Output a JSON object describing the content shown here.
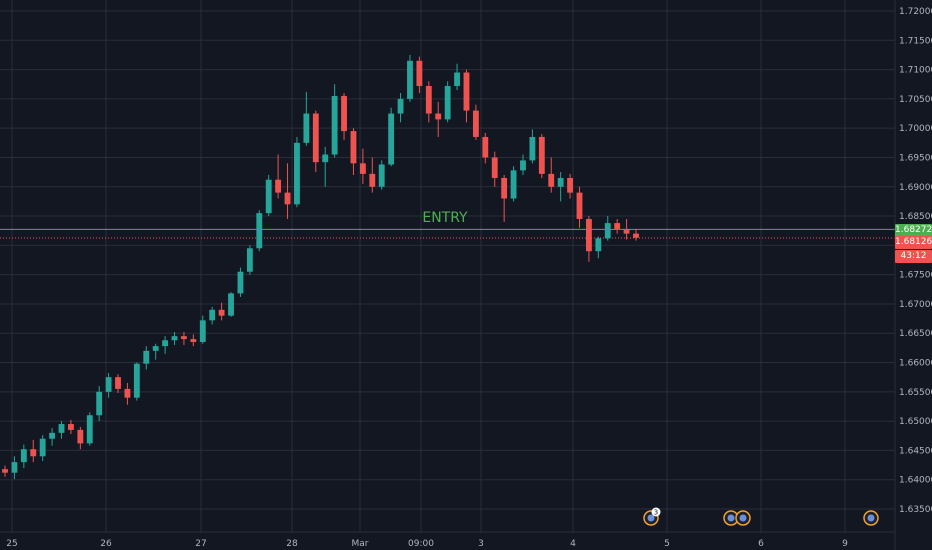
{
  "chart_data": {
    "type": "candlestick",
    "price_axis": {
      "ticks": [
        "1.72000",
        "1.71500",
        "1.71000",
        "1.70500",
        "1.70000",
        "1.69500",
        "1.69000",
        "1.68500",
        "1.68000",
        "1.67500",
        "1.67000",
        "1.66500",
        "1.66000",
        "1.65500",
        "1.65000",
        "1.64500",
        "1.64000",
        "1.63500"
      ],
      "range": [
        1.632,
        1.7215
      ]
    },
    "time_axis": {
      "ticks": [
        "25",
        "26",
        "27",
        "28",
        "Mar",
        "09:00",
        "3",
        "4",
        "5",
        "6",
        "9"
      ]
    },
    "series": [
      {
        "description": "hourly candles: open, high, low, close",
        "ohlc": [
          [
            1.6418,
            1.6424,
            1.6405,
            1.6412
          ],
          [
            1.6412,
            1.644,
            1.6401,
            1.643
          ],
          [
            1.643,
            1.646,
            1.642,
            1.6452
          ],
          [
            1.6452,
            1.6468,
            1.643,
            1.644
          ],
          [
            1.644,
            1.6476,
            1.6432,
            1.647
          ],
          [
            1.647,
            1.6488,
            1.6458,
            1.648
          ],
          [
            1.648,
            1.65,
            1.647,
            1.6495
          ],
          [
            1.6495,
            1.6502,
            1.6478,
            1.6485
          ],
          [
            1.6485,
            1.649,
            1.6452,
            1.6462
          ],
          [
            1.6462,
            1.6515,
            1.6458,
            1.651
          ],
          [
            1.651,
            1.656,
            1.65,
            1.655
          ],
          [
            1.655,
            1.6582,
            1.654,
            1.6575
          ],
          [
            1.6575,
            1.658,
            1.6548,
            1.6555
          ],
          [
            1.6555,
            1.6565,
            1.6528,
            1.654
          ],
          [
            1.654,
            1.66,
            1.6535,
            1.6598
          ],
          [
            1.6598,
            1.6628,
            1.6588,
            1.662
          ],
          [
            1.662,
            1.6632,
            1.6605,
            1.6628
          ],
          [
            1.6628,
            1.6645,
            1.6615,
            1.6638
          ],
          [
            1.6638,
            1.6652,
            1.663,
            1.6645
          ],
          [
            1.6645,
            1.6652,
            1.663,
            1.664
          ],
          [
            1.664,
            1.6648,
            1.6628,
            1.6635
          ],
          [
            1.6635,
            1.668,
            1.6632,
            1.6672
          ],
          [
            1.6672,
            1.6695,
            1.6665,
            1.669
          ],
          [
            1.669,
            1.6702,
            1.6672,
            1.668
          ],
          [
            1.668,
            1.672,
            1.6678,
            1.6718
          ],
          [
            1.6718,
            1.6762,
            1.6712,
            1.6755
          ],
          [
            1.6755,
            1.68,
            1.675,
            1.6795
          ],
          [
            1.6795,
            1.686,
            1.679,
            1.6855
          ],
          [
            1.6855,
            1.692,
            1.685,
            1.6912
          ],
          [
            1.6912,
            1.6955,
            1.688,
            1.689
          ],
          [
            1.689,
            1.694,
            1.6845,
            1.687
          ],
          [
            1.687,
            1.6985,
            1.6865,
            1.6975
          ],
          [
            1.6975,
            1.7062,
            1.697,
            1.7025
          ],
          [
            1.7025,
            1.703,
            1.6925,
            1.6942
          ],
          [
            1.6942,
            1.6968,
            1.69,
            1.6955
          ],
          [
            1.6955,
            1.7075,
            1.695,
            1.7055
          ],
          [
            1.7055,
            1.706,
            1.698,
            1.6995
          ],
          [
            1.6995,
            1.7,
            1.692,
            1.694
          ],
          [
            1.694,
            1.6965,
            1.6905,
            1.6922
          ],
          [
            1.6922,
            1.695,
            1.689,
            1.69
          ],
          [
            1.69,
            1.6945,
            1.6895,
            1.6938
          ],
          [
            1.6938,
            1.7035,
            1.6935,
            1.7025
          ],
          [
            1.7025,
            1.706,
            1.701,
            1.705
          ],
          [
            1.705,
            1.7125,
            1.7045,
            1.7115
          ],
          [
            1.7115,
            1.7122,
            1.706,
            1.7072
          ],
          [
            1.7072,
            1.708,
            1.701,
            1.7025
          ],
          [
            1.7025,
            1.7045,
            1.6985,
            1.7015
          ],
          [
            1.7015,
            1.708,
            1.701,
            1.7072
          ],
          [
            1.7072,
            1.711,
            1.7065,
            1.7095
          ],
          [
            1.7095,
            1.71,
            1.701,
            1.703
          ],
          [
            1.703,
            1.704,
            1.698,
            1.6985
          ],
          [
            1.6985,
            1.6992,
            1.694,
            1.695
          ],
          [
            1.695,
            1.696,
            1.69,
            1.6915
          ],
          [
            1.6915,
            1.692,
            1.684,
            1.688
          ],
          [
            1.688,
            1.6935,
            1.6875,
            1.6928
          ],
          [
            1.6928,
            1.6955,
            1.692,
            1.6945
          ],
          [
            1.6945,
            1.6998,
            1.694,
            1.6985
          ],
          [
            1.6985,
            1.699,
            1.6915,
            1.6922
          ],
          [
            1.6922,
            1.695,
            1.689,
            1.69
          ],
          [
            1.69,
            1.6925,
            1.6875,
            1.6915
          ],
          [
            1.6915,
            1.6922,
            1.688,
            1.689
          ],
          [
            1.689,
            1.69,
            1.683,
            1.6845
          ],
          [
            1.6845,
            1.685,
            1.6772,
            1.679
          ],
          [
            1.679,
            1.6815,
            1.6778,
            1.6812
          ],
          [
            1.6812,
            1.685,
            1.6808,
            1.6838
          ],
          [
            1.6838,
            1.6845,
            1.682,
            1.6828
          ],
          [
            1.6828,
            1.6845,
            1.681,
            1.682
          ],
          [
            1.682,
            1.6828,
            1.6808,
            1.6813
          ]
        ]
      }
    ],
    "levels": [
      {
        "label": "ENTRY",
        "price": 1.68272,
        "color": "#4caf50"
      },
      {
        "label": "",
        "price": 1.68126,
        "color": "#ef5350"
      }
    ],
    "price_labels": {
      "entry_price": "1.68272",
      "current_price": "1.68126",
      "countdown": "43:12"
    },
    "event_markers": [
      {
        "index": 0,
        "count": "3"
      },
      {
        "index": 1
      },
      {
        "index": 2
      },
      {
        "index": 3
      }
    ],
    "colors": {
      "up": "#26a69a",
      "down": "#ef5350",
      "entry": "#4caf50",
      "background": "#131722",
      "grid": "#2a2e39"
    }
  }
}
